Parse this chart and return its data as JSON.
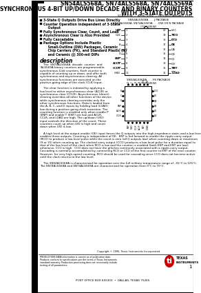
{
  "title_line1": "SN54ALS568A, SN74ALS568A, SN74ALS569A",
  "title_line2": "SYNCHRONOUS 4-BIT UP/DOWN DECADE AND BINARY COUNTERS",
  "title_line3": "WITH 3-STATE OUTPUTS",
  "subtitle_date": "SCAS069B  –  APRIL 1992  –  REVISED JANUARY 1995",
  "features": [
    "3-State Q Outputs Drive Bus Lines Directly",
    "Counter Operation Independent of 3-State\n    Output",
    "Fully Synchronous Clear, Count, and Load",
    "Asynchronous Clear is Also Provided",
    "Fully Cascadable",
    "Package Options Include Plastic\n    Small-Outline (DW) Packages, Ceramic\n    Chip Carriers (FK), and Standard Plastic (N)\n    and Ceramic (J) 300-mil DIPs"
  ],
  "section_description": "description",
  "pkg_label1": "SN54ALS568A . . . J PACKAGE",
  "pkg_label2": "SN74ALS568A, SN74ALS569A . . . DW OR N PACKAGE",
  "pkg_label3": "(TOP VIEW)",
  "pkg_label4": "SN54ALS568A . . . FK PACKAGE",
  "pkg_label5": "(TOP VIEW)",
  "pin_left": [
    "U/D",
    "CLK",
    "A",
    "B",
    "C",
    "D",
    "ENP",
    "ACLR",
    "CCLR",
    "GND"
  ],
  "pin_right": [
    "VCC",
    "RCO",
    "CCO",
    "OE",
    "QA",
    "QB",
    "QC",
    "QD",
    "ENT",
    "LOAD"
  ],
  "pin_left_bar": [
    true,
    false,
    false,
    false,
    false,
    false,
    true,
    true,
    true,
    false
  ],
  "pin_right_bar": [
    false,
    true,
    true,
    true,
    false,
    false,
    false,
    false,
    true,
    true
  ],
  "pin_numbers_left": [
    "1",
    "2",
    "3",
    "4",
    "5",
    "6",
    "7",
    "8",
    "9",
    "10"
  ],
  "pin_numbers_right": [
    "20",
    "19",
    "18",
    "17",
    "16",
    "15",
    "14",
    "13",
    "12",
    "11"
  ],
  "desc_col1": [
    "    The  SN74ALS568A  decade  counter  and",
    "’ALS569A binary counters are programmable,",
    "synchronous 4-bit counters. Each counter is",
    "capable of counting up or down, and offer both",
    "synchronous and asynchronous clearing. All",
    "synchronous functions are executed on the",
    "positive-going edge of the clock (CLK) input.",
    "",
    "    The clear function is initiated by applying a",
    "low level to either asynchronous clear (ACLR) or",
    "synchronous clear (CCLR). Asynchronous (direct)",
    "clearing overrides all other functions of the device,",
    "while synchronous clearing overrides only the",
    "other synchronous functions. Data is loaded from",
    "the A, B, C, and D inputs by holding load (LOAD)",
    "low during a positive-going clock transition. The",
    "counting function is enabled only when enable P",
    "(ENP) and enable T (ENT) are low and ACLR,",
    "CCLR, and LOAD are high. The up/down (U/D)",
    "input controls the direction of the count. These",
    "counters count up when U/D is high and count",
    "down when U/D is low."
  ],
  "desc_para2": [
    "    A high level at the output-enable (OE) input forces the Q outputs into the high-impedance state, and a low level",
    "enables those outputs. Counting is independent of OE.  ENT is fed forward to enable the ripple-carry output",
    "(RCO) to produce a low-level pulse while the count is zero (all Q outputs low) when counting down or maximum",
    "(9 or 15) when counting up. The clocked carry output (CCO) produces a low-level pulse for a duration equal to",
    "that of the low level of the clock when RCO is low and the counter is enabled (both ENP and ENT are low);",
    "otherwise, CCO is high.  CCO does not have the glitches commonly associated with a ripple-carry output.",
    "Cascading is normally accomplished by connecting RCO or CCO of the first counter to ENT of the next counter.",
    "However, for very high-speed counting, RCO should be used for cascading since CCO does not become active",
    "until the clock returns to the low level.",
    "",
    "    The SN54ALS568A is characterized for operation over the full military temperature range of –55°C to 125°C.",
    "The SN74ALS568A and SN74ALS569A are characterized for operation from 0°C to 70°C."
  ],
  "footer_copyright": "Copyright © 1995, Texas Instruments Incorporated",
  "footer_production": "PRODUCTION DATA information is current as of publication date.",
  "footer_production2": "Products conform to specifications per the terms of Texas Instruments",
  "footer_production3": "standard warranty. Production processing does not necessarily include",
  "footer_production4": "testing of all parameters.",
  "footer_address": "POST OFFICE BOX 655303  •  DALLAS, TEXAS 75265",
  "footer_page": "1",
  "bg_color": "#ffffff"
}
